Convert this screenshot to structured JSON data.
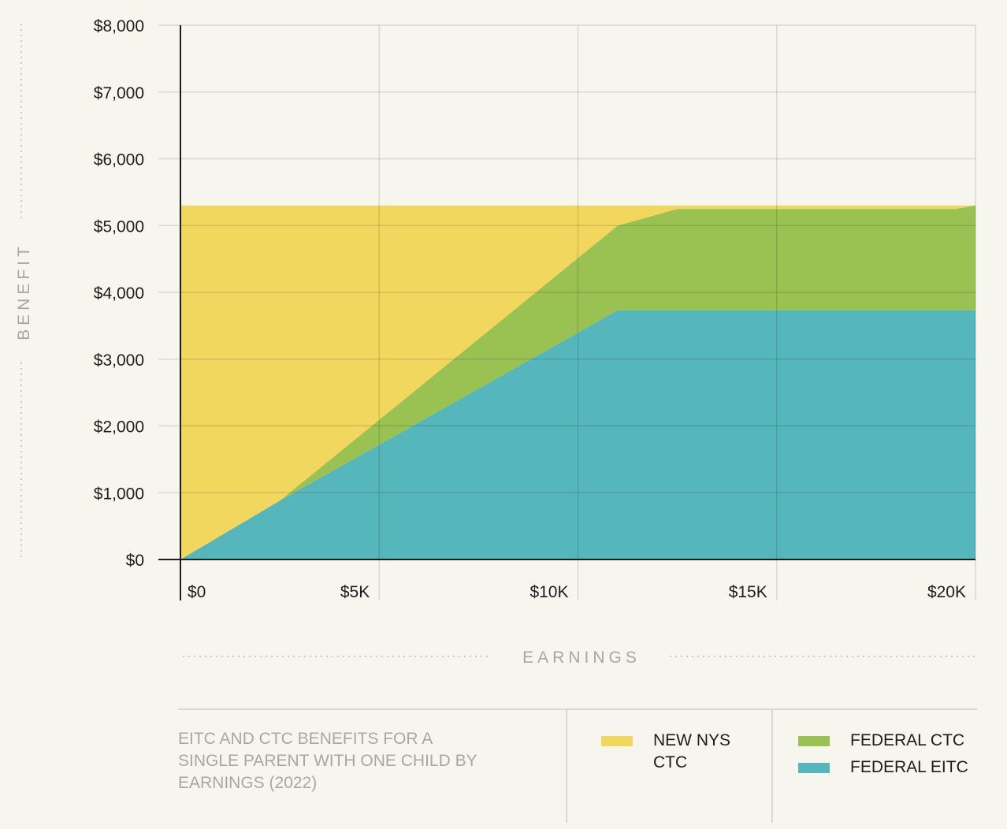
{
  "chart_data": {
    "type": "area",
    "stacked": true,
    "title": "EITC AND CTC BENEFITS FOR A SINGLE PARENT WITH ONE CHILD BY EARNINGS (2022)",
    "xlabel": "EARNINGS",
    "ylabel": "BENEFIT",
    "xlim": [
      0,
      20000
    ],
    "ylim": [
      0,
      8000
    ],
    "x_ticks": [
      0,
      5000,
      10000,
      15000,
      20000
    ],
    "x_tick_labels": [
      "$0",
      "$5K",
      "$10K",
      "$15K",
      "$20K"
    ],
    "y_ticks": [
      0,
      1000,
      2000,
      3000,
      4000,
      5000,
      6000,
      7000,
      8000
    ],
    "y_tick_labels": [
      "$0",
      "$1,000",
      "$2,000",
      "$3,000",
      "$4,000",
      "$5,000",
      "$6,000",
      "$7,000",
      "$8,000"
    ],
    "grid": true,
    "series": [
      {
        "name": "FEDERAL EITC",
        "color": "#55b6bb",
        "x": [
          0,
          2500,
          11000,
          20000
        ],
        "values": [
          0,
          880,
          3733,
          3733
        ]
      },
      {
        "name": "FEDERAL CTC",
        "color": "#99c253",
        "x": [
          0,
          2500,
          11000,
          12500,
          19500,
          20000
        ],
        "values": [
          0,
          0,
          1267,
          1517,
          1517,
          1567
        ]
      },
      {
        "name": "NEW NYS CTC",
        "color": "#f2d75e",
        "x": [
          0,
          2500,
          11000,
          12500,
          19500,
          20000
        ],
        "values": [
          5300,
          4420,
          300,
          50,
          50,
          0
        ]
      }
    ]
  },
  "legend": {
    "items": [
      {
        "label": "NEW NYS CTC",
        "color": "#f2d75e"
      },
      {
        "label": "FEDERAL CTC",
        "color": "#99c253"
      },
      {
        "label": "FEDERAL EITC",
        "color": "#55b6bb"
      }
    ]
  }
}
